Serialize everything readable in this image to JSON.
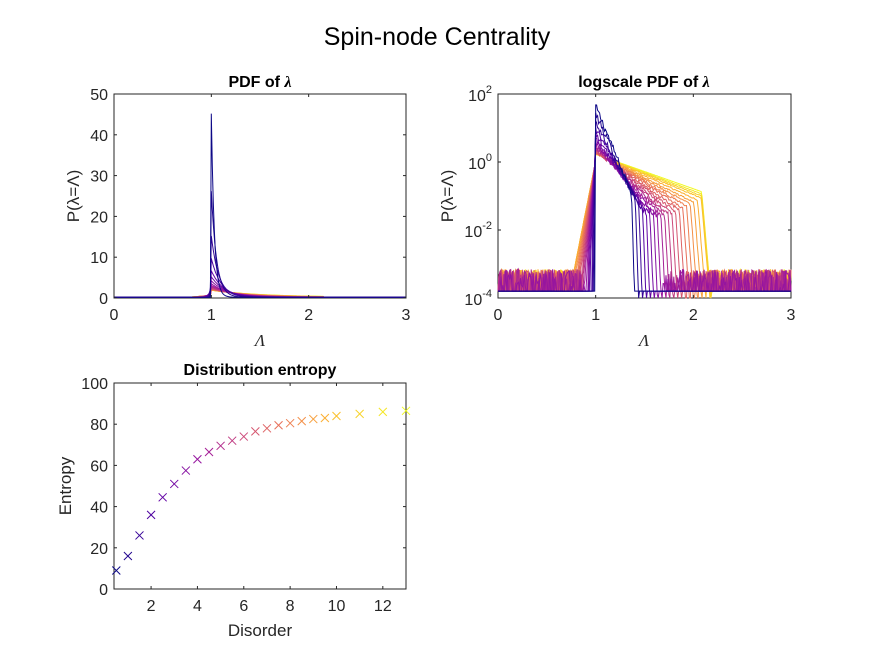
{
  "figure": {
    "title": "Spin-node Centrality"
  },
  "chart_data": [
    {
      "type": "line",
      "title": "PDF of λ",
      "title_text": "PDF of ",
      "title_symbol": "λ",
      "xlabel": "Λ",
      "ylabel": "P(λ=Λ)",
      "xlim": [
        0,
        3
      ],
      "ylim": [
        0,
        50
      ],
      "x_ticks": [
        "0",
        "1",
        "2",
        "3"
      ],
      "y_ticks": [
        "0",
        "10",
        "20",
        "30",
        "40",
        "50"
      ],
      "colormap": [
        "#0d0887",
        "#5c01a6",
        "#9c179e",
        "#cc4778",
        "#ed7953",
        "#fdb42f",
        "#f0f921"
      ],
      "series_note": "23 curves colored by disorder level; peak value decreases as disorder increases",
      "peak_x": 1.0,
      "peak_values": [
        45,
        26,
        15,
        9.5,
        6.5,
        5.0,
        4.0,
        3.3,
        2.9,
        2.6,
        2.4,
        2.2,
        2.1,
        2.0,
        1.95,
        1.9,
        1.85,
        1.8,
        1.78,
        1.75,
        1.73,
        1.71,
        1.7
      ]
    },
    {
      "type": "line",
      "title": "logscale PDF of λ",
      "title_text": "logscale PDF of ",
      "title_symbol": "λ",
      "xlabel": "Λ",
      "ylabel": "P(λ=Λ)",
      "yscale": "log",
      "xlim": [
        0,
        3
      ],
      "ylim": [
        0.0001,
        100
      ],
      "x_ticks": [
        "0",
        "1",
        "2",
        "3"
      ],
      "y_ticks": [
        {
          "base": "10",
          "exp": "2"
        },
        {
          "base": "10",
          "exp": "0"
        },
        {
          "base": "10",
          "exp": "-2"
        },
        {
          "base": "10",
          "exp": "-4"
        }
      ],
      "support_edges": {
        "left_min": 0.78,
        "right_max": 2.18
      },
      "noise_floor": 0.0002
    },
    {
      "type": "scatter",
      "title": "Distribution entropy",
      "xlabel": "Disorder",
      "ylabel": "Entropy",
      "marker": "x",
      "xlim": [
        0.4,
        13
      ],
      "ylim": [
        0,
        100
      ],
      "x_ticks": [
        "2",
        "4",
        "6",
        "8",
        "10",
        "12"
      ],
      "y_ticks": [
        "0",
        "20",
        "40",
        "60",
        "80",
        "100"
      ],
      "x": [
        0.5,
        1,
        1.5,
        2,
        2.5,
        3,
        3.5,
        4,
        4.5,
        5,
        5.5,
        6,
        6.5,
        7,
        7.5,
        8,
        8.5,
        9,
        9.5,
        10,
        11,
        12,
        13
      ],
      "y": [
        9,
        16,
        26,
        36,
        44.5,
        51,
        57.5,
        63,
        66.5,
        69.5,
        72,
        74,
        76.5,
        78,
        79.5,
        80.5,
        81.5,
        82.5,
        83,
        84,
        85,
        86,
        86.5
      ]
    }
  ]
}
